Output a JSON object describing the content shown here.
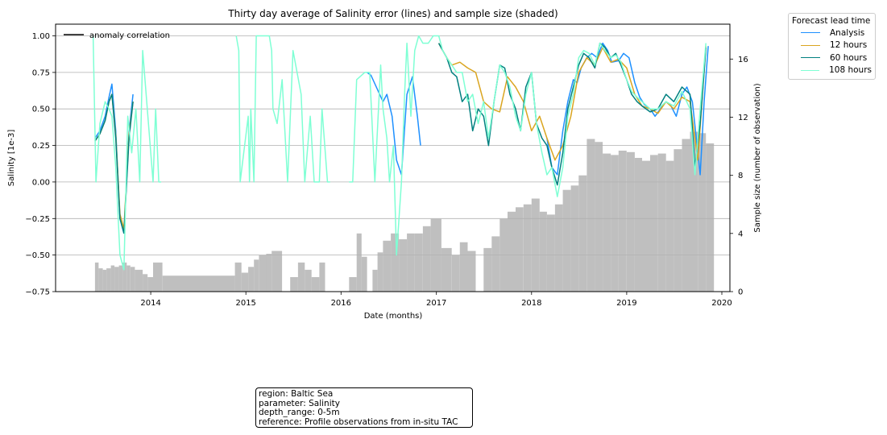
{
  "chart_data": {
    "type": "line",
    "title": "Thirty day average of Salinity error (lines) and sample size (shaded)",
    "xlabel": "Date (months)",
    "ylabel": "Salinity [1e-3]",
    "y2label": "Sample size (number of observation)",
    "xlim": [
      "2013-01-01",
      "2020-02-01"
    ],
    "ylim": [
      -0.75,
      1.08
    ],
    "y2lim": [
      0,
      18.4
    ],
    "x_ticks": [
      "2014",
      "2015",
      "2016",
      "2017",
      "2018",
      "2019",
      "2020"
    ],
    "y_ticks": [
      "1.00",
      "0.75",
      "0.50",
      "0.25",
      "0.00",
      "−0.25",
      "−0.50",
      "−0.75"
    ],
    "y2_ticks": [
      "0",
      "4",
      "8",
      "12",
      "16"
    ],
    "grid": "horizontal",
    "inner_legend": {
      "label": "anomaly correlation",
      "color": "#000000",
      "placement": "top-left"
    },
    "legend": {
      "title": "Forecast lead time",
      "placement": "outside-right",
      "entries": [
        {
          "label": "Analysis",
          "color": "#1e90ff"
        },
        {
          "label": "12 hours",
          "color": "#daa520"
        },
        {
          "label": "60 hours",
          "color": "#008080"
        },
        {
          "label": "108 hours",
          "color": "#7fffd4"
        }
      ]
    },
    "sample_size": {
      "name": "sample size",
      "color": "#bfbfbf",
      "x": [
        "2013-06-01",
        "2013-06-15",
        "2013-07-01",
        "2013-07-15",
        "2013-08-01",
        "2013-08-15",
        "2013-09-01",
        "2013-09-15",
        "2013-10-01",
        "2013-10-15",
        "2013-11-01",
        "2013-12-01",
        "2013-12-20",
        "2014-01-10",
        "2014-02-15",
        "2014-11-20",
        "2014-12-15",
        "2015-01-10",
        "2015-02-01",
        "2015-02-20",
        "2015-03-20",
        "2015-04-10",
        "2015-05-20",
        "2015-06-20",
        "2015-07-20",
        "2015-08-15",
        "2015-09-10",
        "2015-10-10",
        "2015-11-01",
        "2016-02-01",
        "2016-03-01",
        "2016-03-20",
        "2016-04-10",
        "2016-05-01",
        "2016-05-20",
        "2016-06-10",
        "2016-07-10",
        "2016-08-10",
        "2016-09-10",
        "2016-10-10",
        "2016-11-10",
        "2016-12-10",
        "2017-01-20",
        "2017-03-01",
        "2017-04-01",
        "2017-05-01",
        "2017-06-01",
        "2017-07-01",
        "2017-08-01",
        "2017-09-01",
        "2017-10-01",
        "2017-11-01",
        "2017-12-01",
        "2018-01-01",
        "2018-02-01",
        "2018-03-01",
        "2018-04-01",
        "2018-05-01",
        "2018-06-01",
        "2018-07-01",
        "2018-08-01",
        "2018-09-01",
        "2018-10-01",
        "2018-11-01",
        "2018-12-01",
        "2019-01-01",
        "2019-02-01",
        "2019-03-01",
        "2019-04-01",
        "2019-05-01",
        "2019-06-01",
        "2019-07-01",
        "2019-08-01",
        "2019-09-01",
        "2019-10-01",
        "2019-11-01"
      ],
      "values": [
        2.0,
        1.6,
        1.5,
        1.6,
        1.8,
        1.7,
        1.8,
        2.0,
        1.8,
        1.7,
        1.5,
        1.2,
        1.0,
        2.0,
        1.1,
        2.0,
        1.3,
        1.7,
        2.2,
        2.5,
        2.6,
        2.8,
        0,
        1.0,
        2.0,
        1.5,
        1.0,
        2.0,
        0,
        1.0,
        4.0,
        2.4,
        0,
        1.5,
        2.7,
        3.5,
        4.0,
        3.6,
        4.0,
        4.0,
        4.5,
        5.0,
        3.0,
        2.5,
        3.4,
        2.8,
        0,
        3.0,
        3.8,
        5.0,
        5.5,
        5.8,
        6.0,
        6.4,
        5.5,
        5.3,
        6.0,
        7.0,
        7.3,
        8.0,
        10.5,
        10.3,
        9.5,
        9.4,
        9.7,
        9.6,
        9.2,
        9.0,
        9.4,
        9.5,
        9.0,
        9.8,
        10.5,
        11.0,
        10.9,
        10.2
      ]
    },
    "series": [
      {
        "name": "Analysis",
        "color": "#1e90ff",
        "x": [
          "2013-06-01",
          "2013-06-20",
          "2013-07-10",
          "2013-07-25",
          "2013-08-05",
          "2013-08-20",
          "2013-09-05",
          "2013-09-20",
          "2013-10-10",
          "2013-10-25",
          "2014-01-05",
          "2016-04-10",
          "2016-04-25",
          "2016-06-10",
          "2016-06-25",
          "2016-07-15",
          "2016-08-01",
          "2016-08-20",
          "2016-09-10",
          "2016-10-01",
          "2016-10-20",
          "2016-11-01",
          "2018-03-01",
          "2018-03-20",
          "2018-04-10",
          "2018-05-01",
          "2018-05-20",
          "2018-06-10",
          "2018-06-25",
          "2018-07-10",
          "2018-08-01",
          "2018-08-20",
          "2018-09-10",
          "2018-10-01",
          "2018-10-20",
          "2018-11-05",
          "2018-12-01",
          "2018-12-20",
          "2019-01-10",
          "2019-02-01",
          "2019-02-20",
          "2019-03-10",
          "2019-04-01",
          "2019-04-20",
          "2019-05-10",
          "2019-06-01",
          "2019-06-20",
          "2019-07-10",
          "2019-08-01",
          "2019-08-20",
          "2019-09-10",
          "2019-09-25",
          "2019-10-10",
          "2019-10-25",
          "2019-11-10"
        ],
        "values": [
          0.3,
          0.35,
          0.45,
          0.58,
          0.67,
          0.35,
          -0.25,
          -0.35,
          0.35,
          0.6,
          0.5,
          0.75,
          0.73,
          0.55,
          0.6,
          0.45,
          0.15,
          0.05,
          0.6,
          0.72,
          0.45,
          0.25,
          0.3,
          0.1,
          0.05,
          0.35,
          0.55,
          0.7,
          0.68,
          0.78,
          0.85,
          0.88,
          0.85,
          0.95,
          0.9,
          0.82,
          0.83,
          0.88,
          0.85,
          0.68,
          0.58,
          0.53,
          0.5,
          0.45,
          0.5,
          0.55,
          0.52,
          0.45,
          0.6,
          0.65,
          0.55,
          0.3,
          0.05,
          0.55,
          0.93
        ]
      },
      {
        "name": "12 hours",
        "color": "#daa520",
        "x": [
          "2013-06-01",
          "2013-06-20",
          "2013-07-10",
          "2013-07-25",
          "2013-08-05",
          "2013-08-20",
          "2013-09-05",
          "2013-09-20",
          "2013-10-10",
          "2013-10-25",
          "2014-01-05",
          "2017-01-10",
          "2017-01-25",
          "2017-02-10",
          "2017-03-01",
          "2017-04-01",
          "2017-05-01",
          "2017-06-01",
          "2017-07-01",
          "2017-08-01",
          "2017-09-01",
          "2017-10-01",
          "2017-11-01",
          "2017-12-01",
          "2018-01-01",
          "2018-02-01",
          "2018-03-01",
          "2018-04-01",
          "2018-05-01",
          "2018-06-01",
          "2018-07-01",
          "2018-08-01",
          "2018-09-01",
          "2018-10-01",
          "2018-11-01",
          "2018-12-01",
          "2019-01-01",
          "2019-02-01",
          "2019-03-01",
          "2019-04-01",
          "2019-05-01",
          "2019-06-01",
          "2019-07-01",
          "2019-08-01",
          "2019-09-01",
          "2019-10-01",
          "2019-11-01"
        ],
        "values": [
          0.28,
          0.33,
          0.42,
          0.55,
          0.6,
          0.32,
          -0.22,
          -0.32,
          0.33,
          0.55,
          0.48,
          0.95,
          0.9,
          0.85,
          0.8,
          0.82,
          0.78,
          0.75,
          0.55,
          0.5,
          0.48,
          0.72,
          0.65,
          0.55,
          0.35,
          0.45,
          0.3,
          0.15,
          0.25,
          0.45,
          0.75,
          0.85,
          0.8,
          0.92,
          0.82,
          0.84,
          0.78,
          0.6,
          0.52,
          0.5,
          0.47,
          0.55,
          0.5,
          0.58,
          0.55,
          0.15,
          0.93
        ]
      },
      {
        "name": "60 hours",
        "color": "#008080",
        "x": [
          "2013-06-01",
          "2013-06-20",
          "2013-07-10",
          "2013-07-25",
          "2013-08-05",
          "2013-08-20",
          "2013-09-05",
          "2013-09-20",
          "2013-10-10",
          "2013-10-25",
          "2014-01-05",
          "2017-01-10",
          "2017-01-25",
          "2017-02-10",
          "2017-03-01",
          "2017-03-20",
          "2017-04-10",
          "2017-05-01",
          "2017-05-20",
          "2017-06-10",
          "2017-07-01",
          "2017-07-20",
          "2017-08-10",
          "2017-09-01",
          "2017-09-20",
          "2017-10-10",
          "2017-11-01",
          "2017-11-20",
          "2017-12-10",
          "2018-01-01",
          "2018-01-20",
          "2018-02-10",
          "2018-03-01",
          "2018-03-20",
          "2018-04-10",
          "2018-05-01",
          "2018-05-20",
          "2018-06-10",
          "2018-07-01",
          "2018-07-20",
          "2018-08-10",
          "2018-09-01",
          "2018-09-20",
          "2018-10-10",
          "2018-11-01",
          "2018-11-20",
          "2018-12-10",
          "2019-01-01",
          "2019-01-20",
          "2019-02-10",
          "2019-03-01",
          "2019-04-01",
          "2019-05-01",
          "2019-06-01",
          "2019-07-01",
          "2019-08-01",
          "2019-09-01",
          "2019-09-20",
          "2019-10-10",
          "2019-11-01"
        ],
        "values": [
          0.28,
          0.33,
          0.42,
          0.55,
          0.6,
          0.3,
          -0.25,
          -0.35,
          0.3,
          0.55,
          0.45,
          0.95,
          0.9,
          0.85,
          0.75,
          0.72,
          0.55,
          0.6,
          0.35,
          0.5,
          0.45,
          0.25,
          0.55,
          0.8,
          0.78,
          0.6,
          0.5,
          0.35,
          0.65,
          0.75,
          0.4,
          0.3,
          0.25,
          0.1,
          -0.02,
          0.2,
          0.5,
          0.65,
          0.8,
          0.88,
          0.85,
          0.78,
          0.95,
          0.92,
          0.85,
          0.88,
          0.8,
          0.7,
          0.6,
          0.55,
          0.52,
          0.48,
          0.5,
          0.6,
          0.55,
          0.65,
          0.6,
          0.1,
          0.4,
          0.92
        ]
      },
      {
        "name": "108 hours",
        "color": "#7fffd4",
        "x": [
          "2013-05-25",
          "2013-06-05",
          "2013-06-20",
          "2013-07-10",
          "2013-07-25",
          "2013-08-05",
          "2013-08-20",
          "2013-09-05",
          "2013-09-20",
          "2013-10-05",
          "2013-10-20",
          "2013-11-05",
          "2013-11-20",
          "2013-12-01",
          "2014-01-10",
          "2014-01-20",
          "2014-02-01",
          "2014-02-10",
          "2014-11-25",
          "2014-12-05",
          "2014-12-10",
          "2015-01-10",
          "2015-01-15",
          "2015-01-20",
          "2015-02-01",
          "2015-02-10",
          "2015-03-10",
          "2015-04-01",
          "2015-04-10",
          "2015-04-15",
          "2015-05-01",
          "2015-05-20",
          "2015-06-10",
          "2015-07-01",
          "2015-08-01",
          "2015-08-15",
          "2015-09-05",
          "2015-09-20",
          "2015-10-10",
          "2015-10-20",
          "2015-11-10",
          "2015-11-20",
          "2016-02-01",
          "2016-02-15",
          "2016-03-01",
          "2016-04-01",
          "2016-04-20",
          "2016-05-10",
          "2016-06-01",
          "2016-06-10",
          "2016-06-25",
          "2016-07-05",
          "2016-07-20",
          "2016-08-01",
          "2016-08-20",
          "2016-09-01",
          "2016-09-10",
          "2016-09-25",
          "2016-10-10",
          "2016-10-25",
          "2016-11-10",
          "2016-12-01",
          "2016-12-20",
          "2017-01-10",
          "2017-01-25",
          "2017-02-10",
          "2017-03-01",
          "2017-03-20",
          "2017-04-10",
          "2017-05-01",
          "2017-05-20",
          "2017-06-10",
          "2017-07-01",
          "2017-07-20",
          "2017-08-10",
          "2017-09-01",
          "2017-09-20",
          "2017-10-10",
          "2017-11-01",
          "2017-11-20",
          "2017-12-10",
          "2018-01-01",
          "2018-01-20",
          "2018-02-10",
          "2018-03-01",
          "2018-03-20",
          "2018-04-10",
          "2018-05-01",
          "2018-05-20",
          "2018-06-10",
          "2018-07-01",
          "2018-07-20",
          "2018-08-10",
          "2018-09-01",
          "2018-09-20",
          "2018-10-10",
          "2018-11-01",
          "2018-11-20",
          "2018-12-10",
          "2019-01-01",
          "2019-01-20",
          "2019-02-10",
          "2019-03-01",
          "2019-04-01",
          "2019-05-01",
          "2019-06-01",
          "2019-07-01",
          "2019-08-01",
          "2019-09-01",
          "2019-09-20",
          "2019-10-10",
          "2019-11-01"
        ],
        "values": [
          1.0,
          0.0,
          0.4,
          0.55,
          0.5,
          0.45,
          0.1,
          -0.5,
          -0.6,
          0.45,
          0.2,
          0.5,
          0.0,
          0.9,
          0.0,
          0.5,
          0.0,
          0.0,
          1.0,
          0.9,
          0.0,
          0.45,
          0.0,
          0.5,
          0.0,
          1.0,
          1.0,
          1.0,
          0.9,
          0.5,
          0.4,
          0.7,
          0.0,
          0.9,
          0.6,
          0.0,
          0.45,
          0.0,
          0.0,
          0.5,
          0.0,
          0.0,
          0.0,
          0.0,
          0.7,
          0.75,
          0.75,
          0.0,
          0.8,
          0.5,
          0.3,
          0.0,
          0.25,
          -0.5,
          0.0,
          0.6,
          0.95,
          0.45,
          0.9,
          1.0,
          0.95,
          0.95,
          1.0,
          1.0,
          0.9,
          0.85,
          0.8,
          0.75,
          0.75,
          0.55,
          0.6,
          0.4,
          0.55,
          0.3,
          0.55,
          0.8,
          0.75,
          0.65,
          0.45,
          0.35,
          0.6,
          0.75,
          0.4,
          0.2,
          0.05,
          0.1,
          -0.1,
          0.1,
          0.45,
          0.6,
          0.85,
          0.9,
          0.88,
          0.8,
          0.95,
          0.9,
          0.85,
          0.87,
          0.82,
          0.7,
          0.62,
          0.58,
          0.55,
          0.5,
          0.5,
          0.55,
          0.52,
          0.62,
          0.5,
          0.05,
          0.5,
          0.95
        ]
      }
    ],
    "text_box": {
      "line1": "region: Baltic Sea",
      "line2": "parameter: Salinity",
      "line3": "depth_range: 0-5m",
      "line4": "reference: Profile observations from in-situ TAC"
    }
  }
}
